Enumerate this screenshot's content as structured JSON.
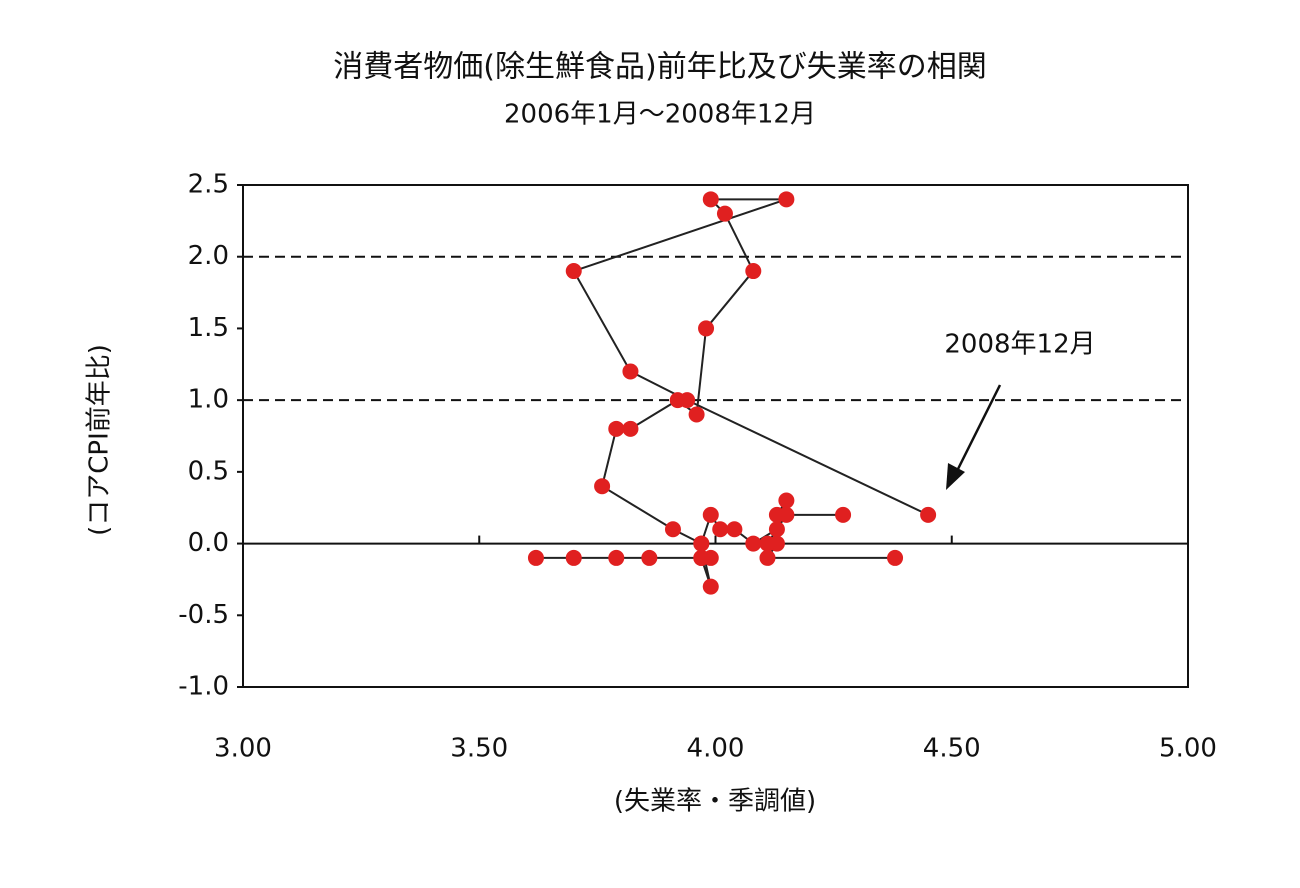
{
  "chart_data": {
    "type": "scatter",
    "title": "消費者物価(除生鮮食品)前年比及び失業率の相関",
    "subtitle": "2006年1月～2008年12月",
    "x_label": "(失業率・季調値)",
    "y_label": "(コアCPI前年比)",
    "annotation": "2008年12月",
    "connected": true,
    "reference_lines": [
      1,
      2
    ],
    "series": [
      {
        "color": "#e02020",
        "x": [
          4.38,
          4.11,
          4.13,
          4.11,
          4.15,
          4.27,
          4.13,
          4.15,
          4.13,
          4.08,
          4.04,
          4.01,
          3.99,
          3.97,
          3.99,
          3.97,
          3.99,
          3.86,
          3.79,
          3.7,
          3.62,
          3.97,
          3.97,
          3.91,
          3.76,
          3.79,
          3.82,
          3.92,
          3.96,
          3.98,
          4.08,
          4.02,
          3.99,
          4.15,
          3.7,
          3.82,
          3.94,
          4.45
        ],
        "values": [
          -0.1,
          -0.1,
          0.0,
          0.0,
          0.2,
          0.2,
          0.2,
          0.3,
          0.1,
          0.0,
          0.1,
          0.1,
          0.2,
          0.0,
          -0.3,
          -0.1,
          -0.1,
          -0.1,
          -0.1,
          -0.1,
          -0.1,
          -0.1,
          0.0,
          0.1,
          0.4,
          0.8,
          0.8,
          1.0,
          0.9,
          1.5,
          1.9,
          2.3,
          2.4,
          2.4,
          1.9,
          1.2,
          1.0,
          0.2
        ]
      }
    ],
    "xlim": [
      3,
      5
    ],
    "xticks": [
      {
        "value": 3,
        "label": "3.00"
      },
      {
        "value": 3.5,
        "label": "3.50"
      },
      {
        "value": 4,
        "label": "4.00"
      },
      {
        "value": 4.5,
        "label": "4.50"
      },
      {
        "value": 5,
        "label": "5.00"
      }
    ],
    "ylim": [
      -1,
      2.5
    ],
    "yticks": [
      {
        "value": -1,
        "label": "-1.0"
      },
      -0.5,
      {
        "value": 0,
        "label": "0.0"
      },
      0.5,
      {
        "value": 1,
        "label": "1.0"
      },
      1.5,
      {
        "value": 2,
        "label": "2.0"
      },
      2.5
    ]
  }
}
